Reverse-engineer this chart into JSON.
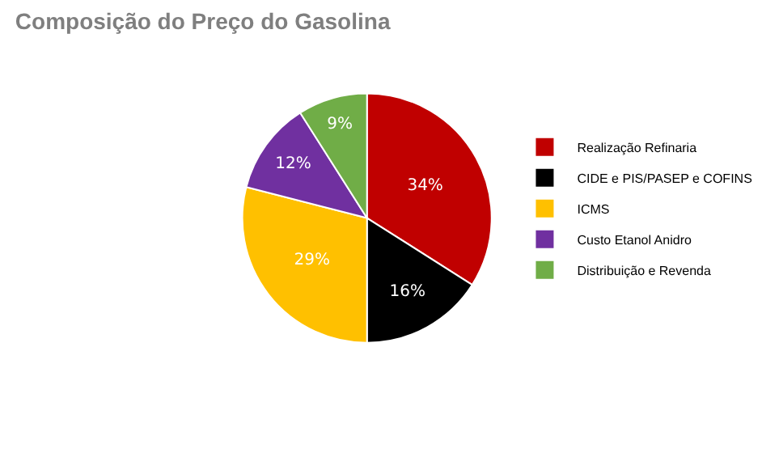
{
  "chart_data": {
    "type": "pie",
    "title": "Composição do Preço do Gasolina",
    "categories": [
      "Realização Refinaria",
      "CIDE e PIS/PASEP e COFINS",
      "ICMS",
      "Custo Etanol Anidro",
      "Distribuição e Revenda"
    ],
    "values": [
      34,
      16,
      29,
      12,
      9
    ],
    "colors": [
      "#c00000",
      "#000000",
      "#ffc000",
      "#7030a0",
      "#70ad47"
    ],
    "value_labels": [
      "34%",
      "16%",
      "29%",
      "12%",
      "9%"
    ],
    "legend": "right"
  }
}
